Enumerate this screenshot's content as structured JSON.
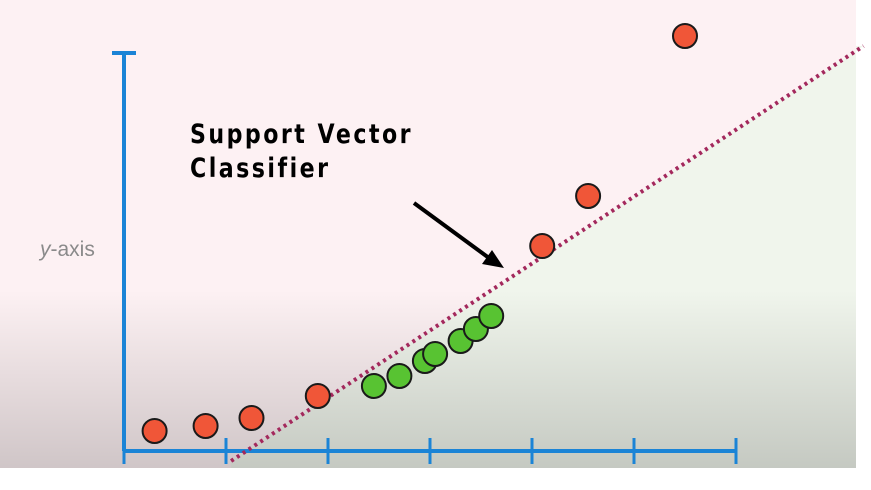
{
  "callout": {
    "line1": "Support Vector",
    "line2": "Classifier"
  },
  "axis": {
    "ylabel_var": "y",
    "ylabel_rest": "-axis"
  },
  "colors": {
    "axis": "#1b84d6",
    "red_point": "#f05638",
    "green_point": "#58c332",
    "classifier_line": "#a3285c",
    "upper_region": "#fdf1f3",
    "lower_region": "#f0f5ec"
  },
  "chart_data": {
    "type": "scatter",
    "x_ticks": 6,
    "series": [
      {
        "color": "red",
        "points": [
          [
            0.3,
            0.2
          ],
          [
            0.8,
            0.25
          ],
          [
            1.25,
            0.33
          ],
          [
            1.9,
            0.55
          ],
          [
            4.1,
            2.05
          ],
          [
            4.55,
            2.55
          ],
          [
            5.5,
            4.15
          ]
        ]
      },
      {
        "color": "green",
        "points": [
          [
            2.45,
            0.65
          ],
          [
            2.7,
            0.75
          ],
          [
            2.95,
            0.9
          ],
          [
            3.05,
            0.97
          ],
          [
            3.3,
            1.1
          ],
          [
            3.45,
            1.22
          ],
          [
            3.6,
            1.35
          ]
        ]
      }
    ],
    "classifier": {
      "type": "line",
      "points": [
        [
          1.05,
          -0.1
        ],
        [
          7.25,
          4.05
        ]
      ]
    }
  }
}
